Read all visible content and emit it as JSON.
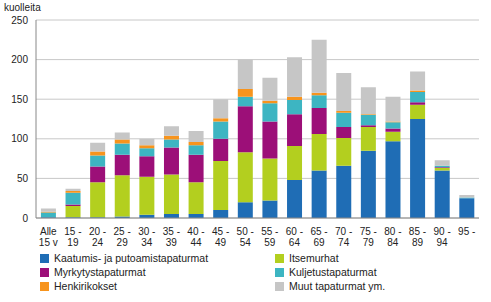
{
  "chart_data": {
    "type": "bar",
    "stacked": true,
    "grid": true,
    "y_label": "kuolleita",
    "legend": "bottom",
    "categories": [
      "Alle 15 v",
      "15 - 19",
      "20 - 24",
      "25 - 29",
      "30 - 34",
      "35 - 39",
      "40 - 44",
      "45 - 49",
      "50 - 54",
      "55 - 59",
      "60 - 64",
      "65 - 69",
      "70 - 74",
      "75 - 79",
      "80 - 84",
      "85 - 89",
      "90 - 94",
      "95 -"
    ],
    "ylim": [
      0,
      250
    ],
    "yticks": [
      0,
      50,
      100,
      150,
      200,
      250
    ],
    "series": [
      {
        "name": "Kaatumis- ja putoamistapaturmat",
        "color": "#1f6db5",
        "values": [
          1,
          1,
          1,
          2,
          4,
          5,
          5,
          10,
          20,
          22,
          48,
          60,
          66,
          85,
          97,
          125,
          60,
          25
        ]
      },
      {
        "name": "Itsemurhat",
        "color": "#b3cf1f",
        "values": [
          0,
          14,
          44,
          52,
          48,
          50,
          40,
          62,
          63,
          53,
          43,
          46,
          35,
          30,
          12,
          18,
          3,
          0
        ]
      },
      {
        "name": "Myrkytystapaturmat",
        "color": "#9c0f78",
        "values": [
          0,
          2,
          20,
          26,
          26,
          34,
          35,
          28,
          58,
          47,
          40,
          33,
          14,
          2,
          4,
          3,
          1,
          0
        ]
      },
      {
        "name": "Kuljetustapaturmat",
        "color": "#3db5c2",
        "values": [
          6,
          15,
          14,
          14,
          10,
          10,
          12,
          22,
          12,
          23,
          18,
          16,
          18,
          13,
          8,
          13,
          2,
          1
        ]
      },
      {
        "name": "Henkirikokset",
        "color": "#f7941d",
        "values": [
          1,
          2,
          5,
          5,
          4,
          5,
          4,
          4,
          10,
          3,
          4,
          3,
          2,
          1,
          1,
          2,
          0,
          0
        ]
      },
      {
        "name": "Muut tapaturmat ym.",
        "color": "#c6c6c6",
        "values": [
          4,
          3,
          11,
          9,
          8,
          12,
          14,
          24,
          37,
          29,
          50,
          67,
          48,
          34,
          31,
          24,
          7,
          3
        ]
      }
    ]
  }
}
